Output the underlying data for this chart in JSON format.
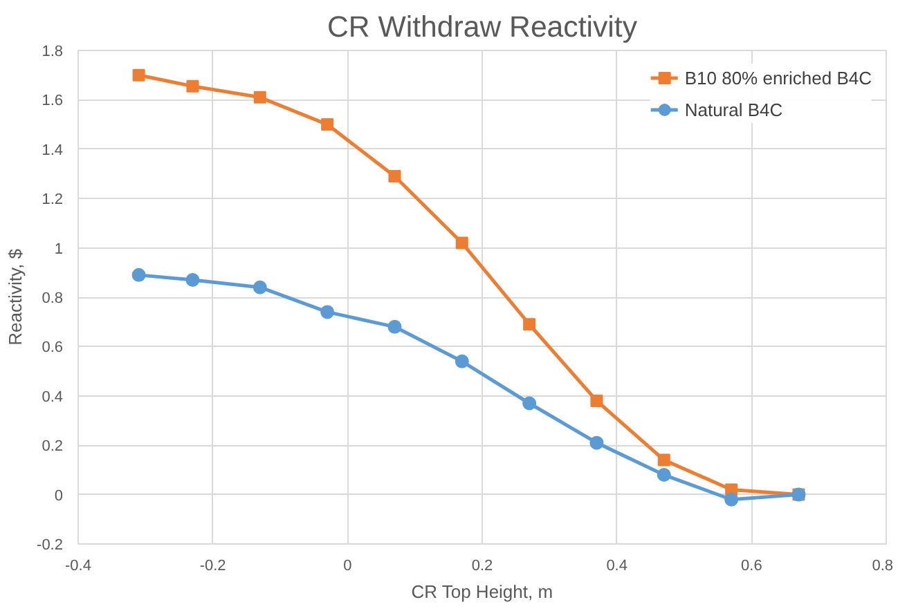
{
  "chart_data": {
    "type": "line",
    "title": "CR Withdraw Reactivity",
    "xlabel": "CR Top Height, m",
    "ylabel": "Reactivity, $",
    "x": [
      -0.31,
      -0.23,
      -0.13,
      -0.03,
      0.07,
      0.17,
      0.27,
      0.37,
      0.47,
      0.57,
      0.67
    ],
    "series": [
      {
        "name": "B10 80% enriched B4C",
        "color": "#ed7d31",
        "marker": "square",
        "values": [
          1.7,
          1.655,
          1.61,
          1.5,
          1.29,
          1.02,
          0.69,
          0.38,
          0.14,
          0.02,
          0.0
        ]
      },
      {
        "name": "Natural B4C",
        "color": "#5b9bd5",
        "marker": "circle",
        "values": [
          0.89,
          0.87,
          0.84,
          0.74,
          0.68,
          0.54,
          0.37,
          0.21,
          0.08,
          -0.02,
          0.0
        ]
      }
    ],
    "xlim": [
      -0.4,
      0.8
    ],
    "xticks": [
      -0.4,
      -0.2,
      0,
      0.2,
      0.4,
      0.6,
      0.8
    ],
    "ylim": [
      -0.2,
      1.8
    ],
    "yticks": [
      -0.2,
      0,
      0.2,
      0.4,
      0.6,
      0.8,
      1,
      1.2,
      1.4,
      1.6,
      1.8
    ],
    "grid": true,
    "legend": "top right"
  }
}
